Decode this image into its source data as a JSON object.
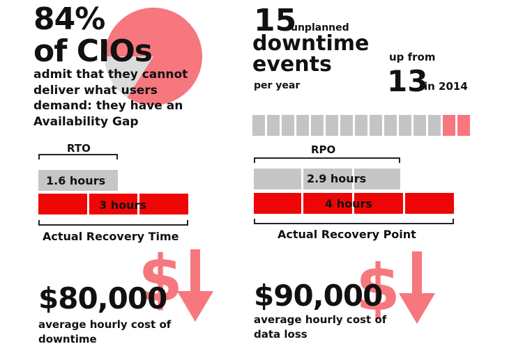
{
  "cio_stat": {
    "percent_text": "84%",
    "percent_value": 84,
    "subject": "of CIOs",
    "description": "admit that they cannot deliver what users demand: they have an Availability Gap"
  },
  "downtime_events": {
    "count": "15",
    "qualifier": "unplanned",
    "headline": "downtime events",
    "per": "per year",
    "up_from_label": "up from",
    "previous_count": "13",
    "previous_year_label": "in 2014",
    "total_events": 15,
    "highlighted_events": 2
  },
  "rto": {
    "label": "RTO",
    "objective_value": "1.6 hours",
    "actual_value": "3 hours",
    "caption": "Actual Recovery Time"
  },
  "rpo": {
    "label": "RPO",
    "objective_value": "2.9 hours",
    "actual_value": "4 hours",
    "caption": "Actual Recovery Point"
  },
  "downtime_cost": {
    "amount": "$80,000",
    "description": "average hourly cost of downtime"
  },
  "data_loss_cost": {
    "amount": "$90,000",
    "description": "average hourly cost of data loss"
  },
  "colors": {
    "pink": "#f6777d",
    "red": "#ee0606",
    "gray": "#c6c6c6",
    "text": "#111111"
  }
}
